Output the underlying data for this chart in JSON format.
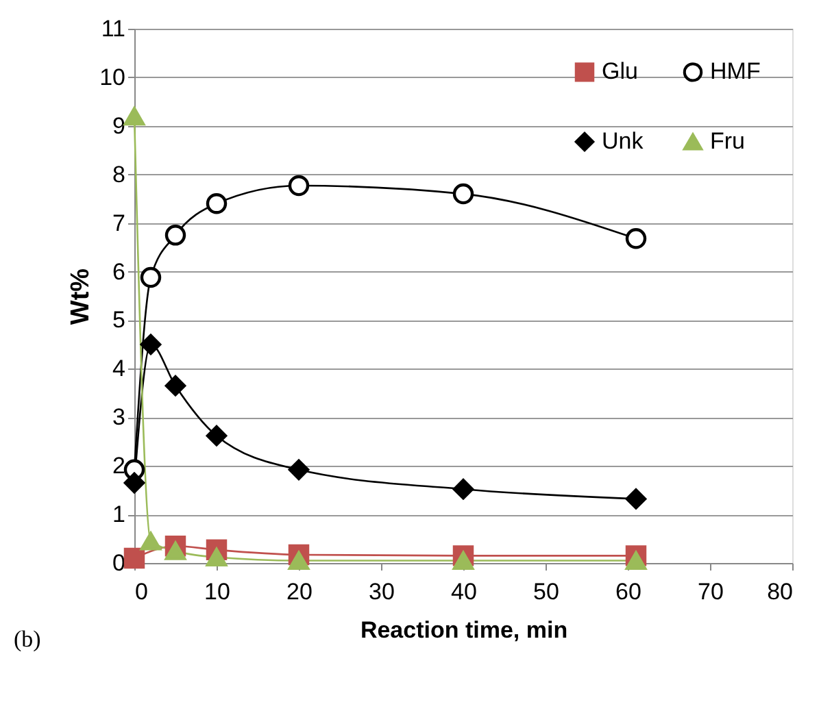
{
  "chart_data": {
    "type": "line",
    "xlabel": "Reaction time, min",
    "ylabel": "Wt%",
    "x": [
      0,
      2,
      5,
      10,
      20,
      40,
      61
    ],
    "series": [
      {
        "name": "Glu",
        "color": "#c0504d",
        "marker": "square",
        "values": [
          0.1,
          null,
          0.35,
          0.27,
          0.17,
          0.15,
          0.15
        ]
      },
      {
        "name": "HMF",
        "color": "#000000",
        "marker": "circle",
        "values": [
          1.92,
          5.88,
          6.75,
          7.4,
          7.77,
          7.6,
          6.68
        ]
      },
      {
        "name": "Unk",
        "color": "#000000",
        "marker": "diamond",
        "values": [
          1.65,
          4.5,
          3.65,
          2.62,
          1.92,
          1.52,
          1.32
        ]
      },
      {
        "name": "Fru",
        "color": "#9bbb59",
        "marker": "triangle",
        "values": [
          9.2,
          0.45,
          0.25,
          0.12,
          0.05,
          0.05,
          0.05
        ]
      }
    ],
    "xlim": [
      0,
      80
    ],
    "xticks": [
      0,
      10,
      20,
      30,
      40,
      50,
      60,
      70,
      80
    ],
    "ylim": [
      0,
      11
    ],
    "yticks": [
      0,
      1,
      2,
      3,
      4,
      5,
      6,
      7,
      8,
      9,
      10,
      11
    ],
    "grid": "y",
    "legend": "top right",
    "line_style": "solid",
    "annotations": [
      "(b)"
    ]
  }
}
